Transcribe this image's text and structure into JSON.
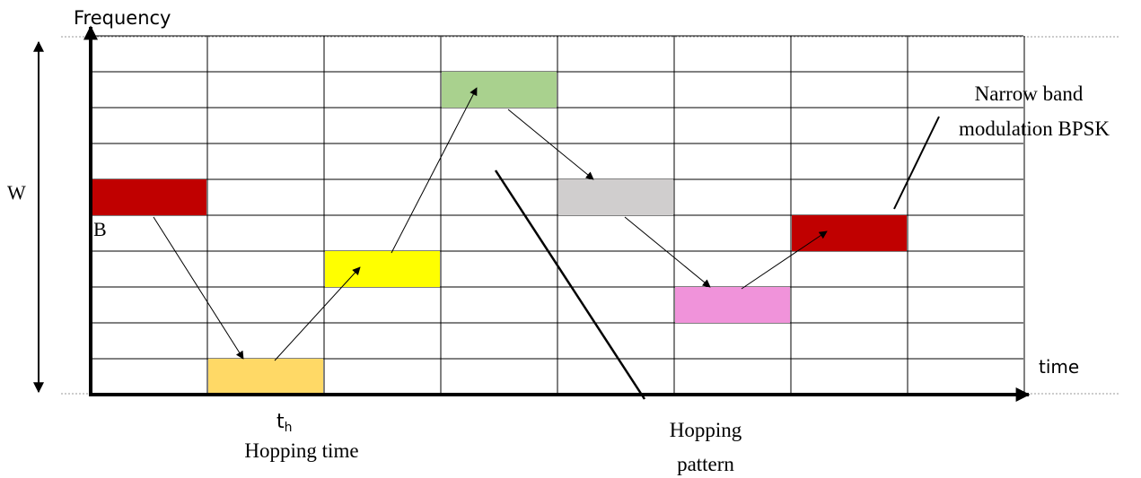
{
  "labels": {
    "y_axis": "Frequency",
    "x_axis": "time",
    "bandwidth": "W",
    "slot_label": "B",
    "hop_time_symbol": "t",
    "hop_time_subscript": "h",
    "hop_time_caption": "Hopping time",
    "pattern_line1": "Hopping",
    "pattern_line2": "pattern",
    "narrowband_line1": "Narrow band",
    "narrowband_line2": "modulation BPSK"
  },
  "grid": {
    "time_slots": 8,
    "frequency_channels": 10
  },
  "hops": [
    {
      "slot": 0,
      "channel": 5,
      "color": "#c00000"
    },
    {
      "slot": 1,
      "channel": 0,
      "color": "#ffd966"
    },
    {
      "slot": 2,
      "channel": 3,
      "color": "#ffff00"
    },
    {
      "slot": 3,
      "channel": 8,
      "color": "#a9d18e"
    },
    {
      "slot": 4,
      "channel": 5,
      "color": "#d0cece"
    },
    {
      "slot": 5,
      "channel": 2,
      "color": "#f093da"
    },
    {
      "slot": 6,
      "channel": 4,
      "color": "#c00000"
    }
  ]
}
